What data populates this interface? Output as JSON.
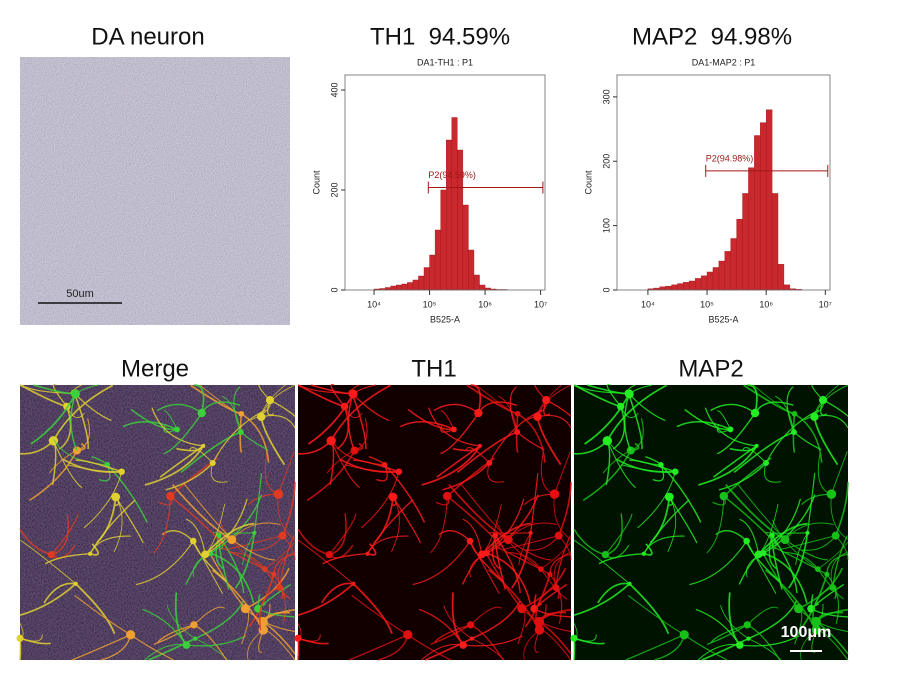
{
  "headings": [
    "DA neuron",
    "TH1  94.59%",
    "MAP2  94.98%"
  ],
  "image_labels": [
    "Merge",
    "TH1",
    "MAP2"
  ],
  "scale_bars": [
    "50um",
    "100μm"
  ],
  "chart_data": [
    {
      "type": "histogram",
      "title": "DA1-TH1 : P1",
      "x_label": "B525-A",
      "y_label": "Count",
      "xscale": "log",
      "color": "#c8282e",
      "bins": [
        10000,
        12589,
        15849,
        19953,
        25119,
        31623,
        39811,
        50119,
        63096,
        79433,
        100000,
        125893,
        158489,
        199526,
        251189,
        316228,
        398107,
        501187,
        630957,
        794328,
        1000000,
        1258925,
        1584893,
        1995262,
        2511886,
        3162278,
        3981072,
        5011872
      ],
      "values": [
        2,
        3,
        5,
        8,
        10,
        12,
        15,
        20,
        28,
        45,
        70,
        120,
        200,
        300,
        345,
        280,
        170,
        80,
        30,
        10,
        4,
        2,
        1,
        1,
        0,
        0,
        0
      ],
      "xlim": [
        3000,
        12000000
      ],
      "ylim": [
        0,
        430
      ],
      "xticks": [
        {
          "value": 10000,
          "label": "10⁴"
        },
        {
          "value": 100000,
          "label": "10⁵"
        },
        {
          "value": 1000000,
          "label": "10⁶"
        },
        {
          "value": 10000000,
          "label": "10⁷"
        }
      ],
      "yticks": [
        0,
        200,
        400
      ],
      "gate": {
        "label": "P2(94.59%)",
        "range": [
          95000,
          11000000
        ],
        "count": 205
      }
    },
    {
      "type": "histogram",
      "title": "DA1-MAP2 : P1",
      "x_label": "B525-A",
      "y_label": "Count",
      "xscale": "log",
      "color": "#c8282e",
      "bins": [
        10000,
        12589,
        15849,
        19953,
        25119,
        31623,
        39811,
        50119,
        63096,
        79433,
        100000,
        125893,
        158489,
        199526,
        251189,
        316228,
        398107,
        501187,
        630957,
        794328,
        1000000,
        1258925,
        1584893,
        1995262,
        2511886,
        3162278,
        3981072,
        5011872
      ],
      "values": [
        2,
        3,
        5,
        6,
        8,
        10,
        12,
        14,
        18,
        22,
        28,
        35,
        45,
        60,
        80,
        110,
        150,
        190,
        240,
        260,
        280,
        150,
        40,
        8,
        2,
        1,
        0
      ],
      "xlim": [
        3000,
        12000000
      ],
      "ylim": [
        0,
        334
      ],
      "xticks": [
        {
          "value": 10000,
          "label": "10⁴"
        },
        {
          "value": 100000,
          "label": "10⁵"
        },
        {
          "value": 1000000,
          "label": "10⁶"
        },
        {
          "value": 10000000,
          "label": "10⁷"
        }
      ],
      "yticks": [
        0,
        100,
        200,
        300
      ],
      "gate": {
        "label": "P2(94.98%)",
        "range": [
          95000,
          11000000
        ],
        "count": 185
      }
    }
  ]
}
